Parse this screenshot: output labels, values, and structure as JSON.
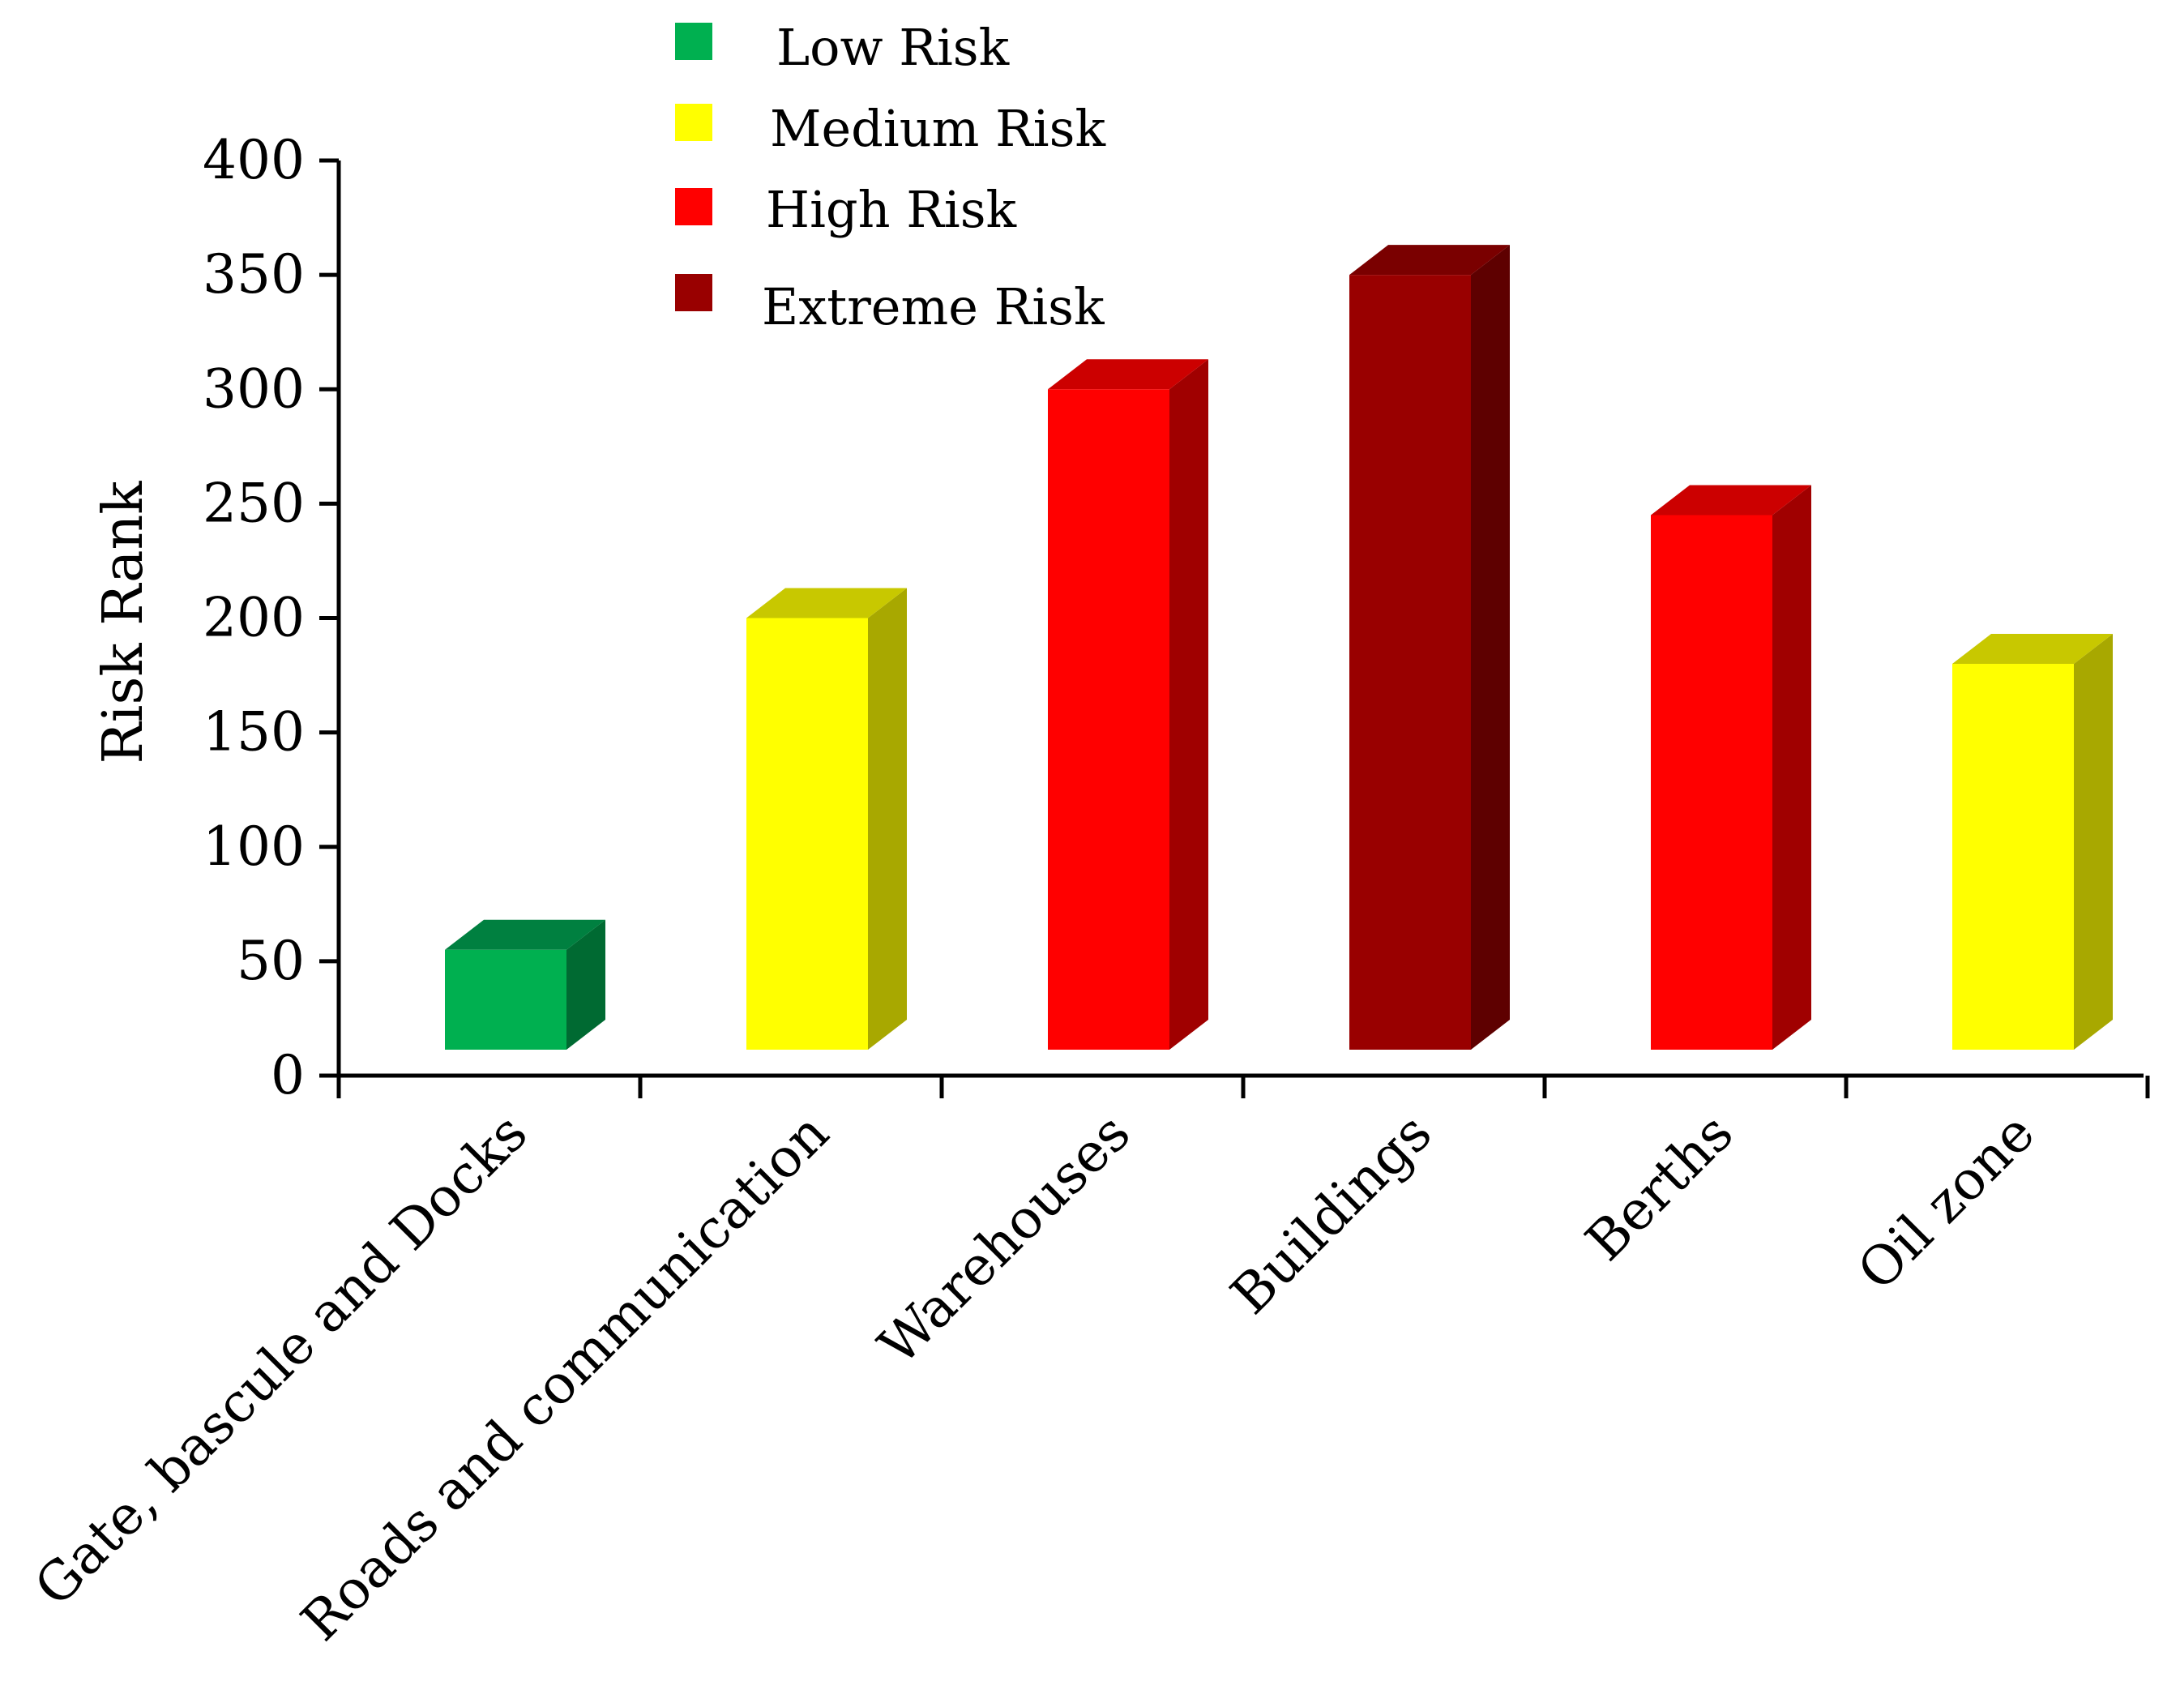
{
  "chart_data": {
    "type": "bar",
    "title": "",
    "xlabel": "",
    "ylabel": "Risk Rank",
    "ylim": [
      0,
      400
    ],
    "yticks": [
      0,
      50,
      100,
      150,
      200,
      250,
      300,
      350,
      400
    ],
    "categories": [
      "Gate, bascule and Docks",
      "Roads and communication",
      "Warehouses",
      "Buildings",
      "Berths",
      "Oil zone"
    ],
    "values": [
      55,
      200,
      300,
      350,
      245,
      180
    ],
    "risk_levels": [
      "Low Risk",
      "Medium Risk",
      "High Risk",
      "Extreme Risk",
      "High Risk",
      "Medium Risk"
    ],
    "style_3d": true,
    "grid": false,
    "legend_position": "top-center",
    "legend": [
      {
        "label": "Low Risk",
        "front": "#00b050",
        "top": "#008040",
        "side": "#006a32"
      },
      {
        "label": "Medium Risk",
        "front": "#ffff00",
        "top": "#c8c800",
        "side": "#a8a800"
      },
      {
        "label": "High Risk",
        "front": "#ff0000",
        "top": "#cc0000",
        "side": "#a00000"
      },
      {
        "label": "Extreme Risk",
        "front": "#990000",
        "top": "#7a0000",
        "side": "#5e0000"
      }
    ]
  }
}
